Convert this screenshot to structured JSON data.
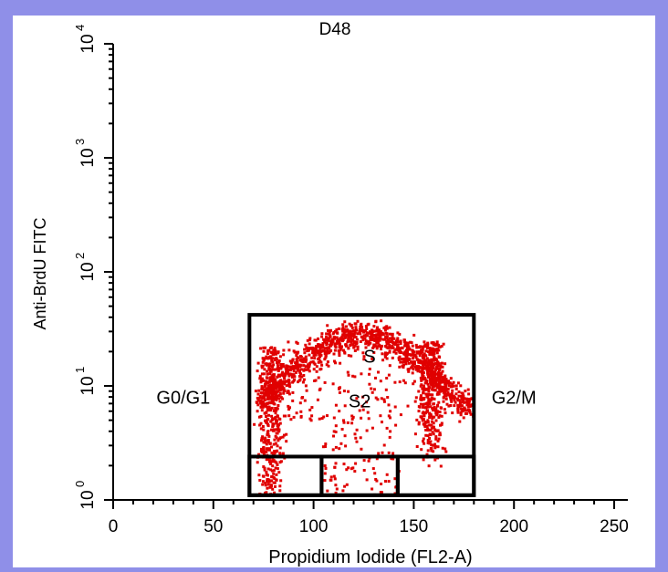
{
  "colors": {
    "frame": "#8f8fe8",
    "panel": "#ffffff",
    "events": "#e00000",
    "ink": "#000000"
  },
  "chart_data": {
    "type": "scatter",
    "title": "D48",
    "xlabel": "Propidium Iodide (FL2-A)",
    "ylabel": "Anti-BrdU FITC",
    "xlim": [
      0,
      255
    ],
    "ylim_log10": [
      0,
      4
    ],
    "y_scale": "log",
    "x_ticks": [
      "0",
      "50",
      "100",
      "150",
      "200",
      "250"
    ],
    "y_ticks": [
      {
        "base": "10",
        "exp": "0"
      },
      {
        "base": "10",
        "exp": "1"
      },
      {
        "base": "10",
        "exp": "2"
      },
      {
        "base": "10",
        "exp": "3"
      },
      {
        "base": "10",
        "exp": "4"
      }
    ],
    "gates": [
      {
        "label": "S",
        "x": [
          68,
          180
        ],
        "y": [
          1.1,
          42
        ]
      },
      {
        "label": "G0/G1",
        "x": [
          68,
          104
        ],
        "y": [
          1.1,
          2.4
        ]
      },
      {
        "label": "S2",
        "x": [
          104,
          142
        ],
        "y": [
          1.1,
          2.4
        ]
      },
      {
        "label": "G2/M",
        "x": [
          142,
          180
        ],
        "y": [
          1.1,
          2.4
        ]
      }
    ],
    "gate_labels": [
      {
        "text": "S",
        "x": 128,
        "y": 16
      },
      {
        "text": "G0/G1",
        "x": 35,
        "y": 7
      },
      {
        "text": "S2",
        "x": 123,
        "y": 6.5
      },
      {
        "text": "G2/M",
        "x": 200,
        "y": 7
      }
    ],
    "populations": [
      {
        "name": "G0/G1",
        "x_center": 78,
        "x_sd": 5,
        "y_log_range": [
          0.05,
          1.45
        ]
      },
      {
        "name": "S-phase arc",
        "x_range": [
          70,
          180
        ],
        "y_log_peak": 1.45
      },
      {
        "name": "G2/M",
        "x_center": 158,
        "x_sd": 6,
        "y_log_range": [
          0.4,
          1.5
        ]
      },
      {
        "name": "S2",
        "x_range": [
          104,
          142
        ],
        "y_log_range": [
          0.05,
          0.7
        ]
      }
    ]
  }
}
